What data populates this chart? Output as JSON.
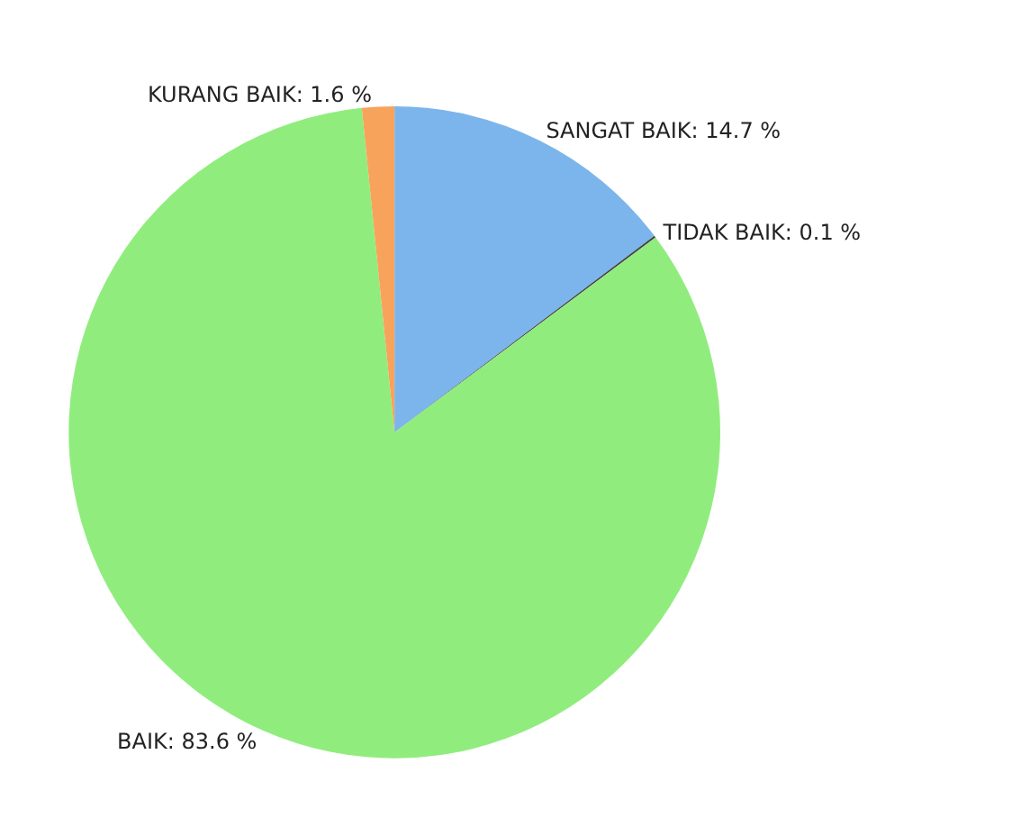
{
  "chart_data": {
    "type": "pie",
    "categories": [
      "SANGAT BAIK",
      "TIDAK BAIK",
      "BAIK",
      "KURANG BAIK"
    ],
    "values": [
      14.7,
      0.1,
      83.6,
      1.6
    ],
    "value_labels": [
      "14.7 %",
      "0.1 %",
      "83.6 %",
      "1.6 %"
    ],
    "colors": [
      "#7cb5ec",
      "#434348",
      "#90ed7d",
      "#f7a35c"
    ],
    "legend": false
  }
}
